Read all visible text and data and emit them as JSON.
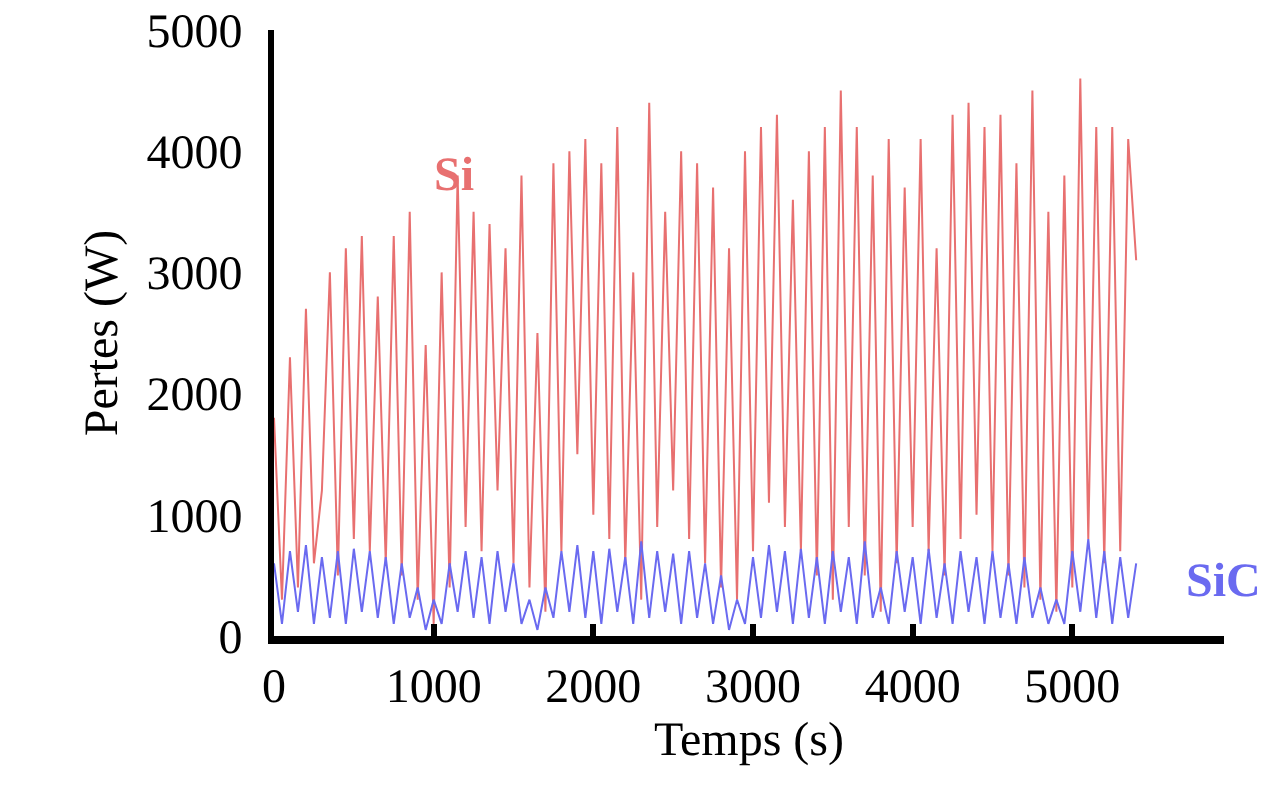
{
  "chart_data": {
    "type": "line",
    "xlabel": "Temps (s)",
    "ylabel": "Pertes (W)",
    "x": [
      0,
      50,
      100,
      150,
      200,
      250,
      300,
      350,
      400,
      450,
      500,
      550,
      600,
      650,
      700,
      750,
      800,
      850,
      900,
      950,
      1000,
      1050,
      1100,
      1150,
      1200,
      1250,
      1300,
      1350,
      1400,
      1450,
      1500,
      1550,
      1600,
      1650,
      1700,
      1750,
      1800,
      1850,
      1900,
      1950,
      2000,
      2050,
      2100,
      2150,
      2200,
      2250,
      2300,
      2350,
      2400,
      2450,
      2500,
      2550,
      2600,
      2650,
      2700,
      2750,
      2800,
      2850,
      2900,
      2950,
      3000,
      3050,
      3100,
      3150,
      3200,
      3250,
      3300,
      3350,
      3400,
      3450,
      3500,
      3550,
      3600,
      3650,
      3700,
      3750,
      3800,
      3850,
      3900,
      3950,
      4000,
      4050,
      4100,
      4150,
      4200,
      4250,
      4300,
      4350,
      4400,
      4450,
      4500,
      4550,
      4600,
      4650,
      4700,
      4750,
      4800,
      4850,
      4900,
      4950,
      5000,
      5050,
      5100,
      5150,
      5200,
      5250,
      5300,
      5350,
      5400
    ],
    "series": [
      {
        "name": "Si",
        "color": "#e87070",
        "values": [
          1800,
          300,
          2300,
          400,
          2700,
          600,
          1200,
          3000,
          500,
          3200,
          800,
          3300,
          700,
          2800,
          600,
          3300,
          500,
          3500,
          300,
          2400,
          100,
          3000,
          400,
          3800,
          900,
          3500,
          700,
          3400,
          1200,
          3200,
          600,
          3800,
          400,
          2500,
          200,
          3900,
          700,
          4000,
          1500,
          4100,
          1000,
          3900,
          800,
          4200,
          600,
          3000,
          300,
          4400,
          900,
          3500,
          1200,
          4000,
          800,
          3900,
          600,
          3700,
          400,
          3200,
          300,
          4000,
          700,
          4200,
          1100,
          4300,
          900,
          3600,
          700,
          4000,
          500,
          4200,
          300,
          4500,
          900,
          4200,
          500,
          3800,
          200,
          4100,
          600,
          3700,
          900,
          4100,
          700,
          3200,
          500,
          4300,
          800,
          4400,
          1000,
          4200,
          700,
          4300,
          500,
          3900,
          400,
          4500,
          300,
          3500,
          200,
          3800,
          400,
          4600,
          800,
          4200,
          600,
          4200,
          700,
          4100,
          3100
        ]
      },
      {
        "name": "SiC",
        "color": "#6a6af0",
        "values": [
          600,
          100,
          700,
          200,
          750,
          100,
          650,
          150,
          700,
          100,
          720,
          200,
          700,
          150,
          650,
          100,
          600,
          150,
          400,
          50,
          300,
          100,
          600,
          200,
          700,
          150,
          650,
          100,
          700,
          200,
          600,
          100,
          300,
          50,
          400,
          150,
          700,
          200,
          750,
          150,
          700,
          100,
          720,
          200,
          650,
          100,
          780,
          150,
          700,
          200,
          680,
          100,
          700,
          150,
          600,
          100,
          500,
          50,
          300,
          100,
          650,
          150,
          750,
          200,
          700,
          100,
          720,
          150,
          650,
          100,
          700,
          200,
          650,
          100,
          780,
          150,
          400,
          100,
          700,
          200,
          650,
          100,
          720,
          150,
          600,
          100,
          700,
          200,
          650,
          100,
          700,
          150,
          600,
          100,
          650,
          150,
          400,
          100,
          300,
          100,
          700,
          200,
          800,
          150,
          700,
          100,
          650,
          150,
          600
        ]
      }
    ],
    "xlim": [
      0,
      5950
    ],
    "xticks": [
      0,
      1000,
      2000,
      3000,
      4000,
      5000
    ],
    "ylim": [
      0,
      5000
    ],
    "yticks": [
      0,
      1000,
      2000,
      3000,
      4000,
      5000
    ],
    "grid": false,
    "legend": false,
    "marker": "none",
    "line_style": "solid"
  }
}
